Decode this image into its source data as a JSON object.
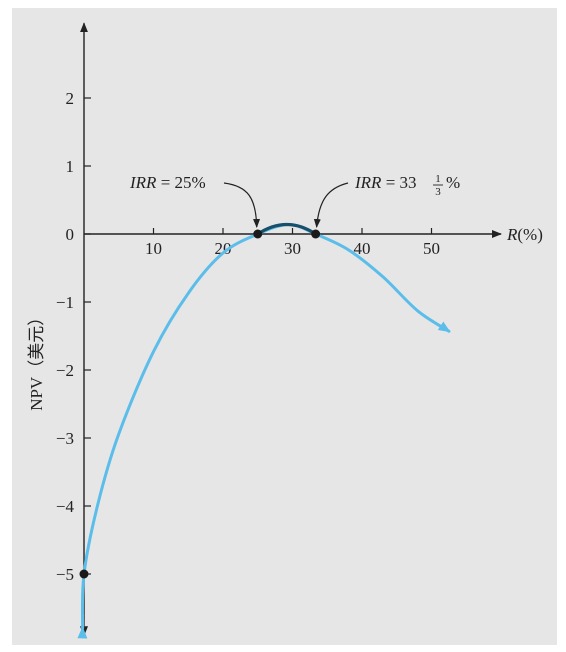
{
  "chart_data": {
    "type": "line",
    "xlabel": "R(%)",
    "ylabel": "NPV（美元）",
    "xlim": [
      0,
      60
    ],
    "ylim": [
      -5.9,
      3.1
    ],
    "x_ticks": [
      10,
      20,
      30,
      40,
      50
    ],
    "y_ticks": [
      2,
      1,
      0,
      -1,
      -2,
      -3,
      -4,
      -5
    ],
    "x_tick_labels": [
      "10",
      "20",
      "30",
      "40",
      "50"
    ],
    "y_tick_labels": [
      "2",
      "1",
      "0",
      "−1",
      "−2",
      "−3",
      "−4",
      "−5"
    ],
    "curve_color": "#5bbde9",
    "highlight_color": "#17506b",
    "series": [
      {
        "x": [
          -0.2,
          0,
          2,
          5,
          10,
          15,
          20,
          25,
          29.5,
          33.33,
          38,
          43,
          48,
          52.5
        ],
        "y": [
          -5.8,
          -5,
          -3.97,
          -2.94,
          -1.73,
          -0.87,
          -0.28,
          0,
          0.14,
          0,
          -0.23,
          -0.63,
          -1.13,
          -1.43
        ]
      }
    ],
    "points": [
      {
        "x": 0,
        "y": -5
      },
      {
        "x": 25,
        "y": 0
      },
      {
        "x": 33.33,
        "y": 0
      }
    ],
    "annotations": [
      {
        "text_prefix": "IRR",
        "text_mid": " = 25%",
        "x": 25,
        "y": 0
      },
      {
        "text_prefix": "IRR",
        "text_mid": " = 33",
        "frac_num": "1",
        "frac_den": "3",
        "text_suffix": "%",
        "x": 33.33,
        "y": 0
      }
    ]
  }
}
